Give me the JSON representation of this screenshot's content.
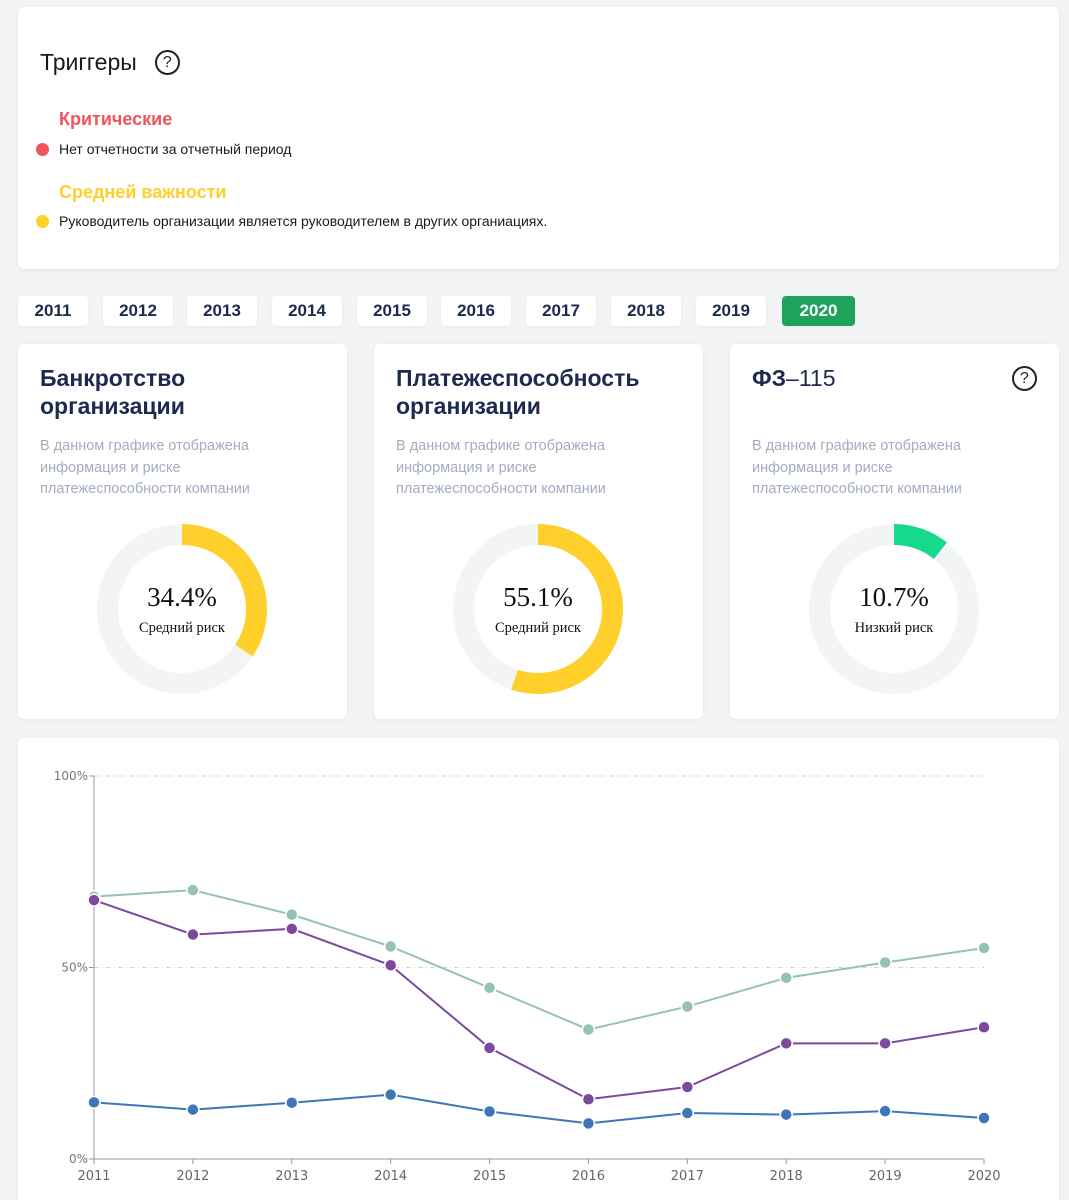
{
  "triggers": {
    "title": "Триггеры",
    "help": "?",
    "critical_label": "Критические",
    "critical_color": "#f2545b",
    "critical_items": [
      "Нет отчетности за отчетный период"
    ],
    "medium_label": "Средней важности",
    "medium_color": "#ffd02c",
    "medium_items": [
      "Руководитель организации является руководителем в других органиациях."
    ]
  },
  "years": {
    "items": [
      "2011",
      "2012",
      "2013",
      "2014",
      "2015",
      "2016",
      "2017",
      "2018",
      "2019",
      "2020"
    ],
    "active": "2020"
  },
  "gauges": [
    {
      "title": "Банкротство организации",
      "description": "В данном графике отображена информация и риске платежеспособности компании",
      "percent_label": "34.4%",
      "value": 34.4,
      "risk_label": "Средний риск",
      "color": "#ffd02c"
    },
    {
      "title": "Платежеспособность организации",
      "description": "В данном графике отображена информация и риске платежеспособности компании",
      "percent_label": "55.1%",
      "value": 55.1,
      "risk_label": "Средний риск",
      "color": "#ffd02c"
    },
    {
      "title_prefix": "ФЗ",
      "title_suffix": "–115",
      "description": "В данном графике отображена информация и риске платежеспособности компании",
      "percent_label": "10.7%",
      "value": 10.7,
      "risk_label": "Низкий риск",
      "color": "#17d98b",
      "help": "?"
    }
  ],
  "gauge_track_color": "#f3f4f6",
  "chart_data": {
    "type": "line",
    "categories": [
      "2011",
      "2012",
      "2013",
      "2014",
      "2015",
      "2016",
      "2017",
      "2018",
      "2019",
      "2020"
    ],
    "y_ticks": [
      "0%",
      "50%",
      "100%"
    ],
    "ylim": [
      0,
      100
    ],
    "grid": "horizontal dashed",
    "series": [
      {
        "color": "#95c1b9",
        "values": [
          68.5,
          70.2,
          63.8,
          55.5,
          44.7,
          33.8,
          39.8,
          47.3,
          51.3,
          55.1
        ]
      },
      {
        "color": "#7b4a9c",
        "values": [
          67.6,
          58.6,
          60.1,
          50.6,
          29.0,
          15.6,
          18.8,
          30.2,
          30.2,
          34.4
        ]
      },
      {
        "color": "#3e77b6",
        "values": [
          14.8,
          12.9,
          14.7,
          16.8,
          12.4,
          9.3,
          12.0,
          11.6,
          12.5,
          10.7
        ]
      }
    ]
  }
}
